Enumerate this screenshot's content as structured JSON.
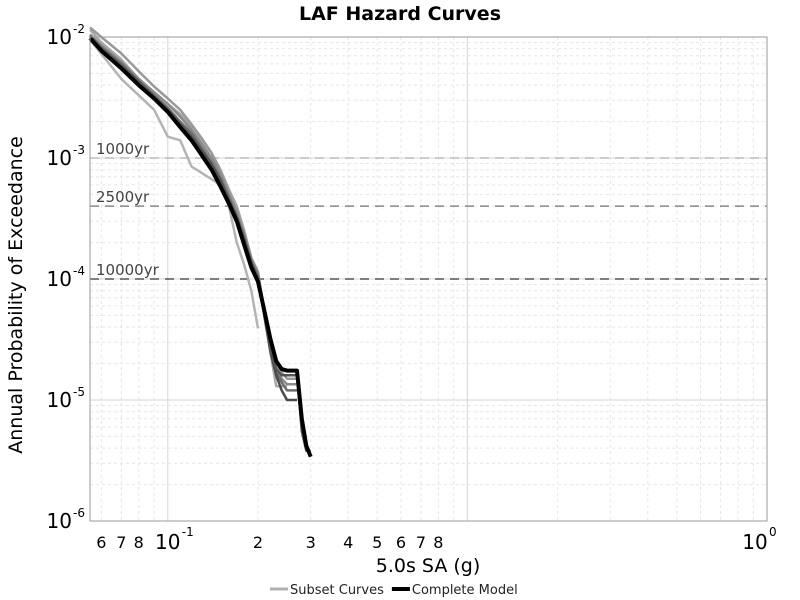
{
  "chart_data": {
    "type": "line",
    "title": "LAF Hazard Curves",
    "xlabel": "5.0s SA (g)",
    "ylabel": "Annual Probability of Exceedance",
    "x_scale": "log",
    "y_scale": "log",
    "xlim": [
      0.055,
      10
    ],
    "ylim": [
      1e-06,
      0.01
    ],
    "grid": true,
    "x_major_ticks": [
      {
        "value": 0.1,
        "base": "10",
        "exp": "-1"
      },
      {
        "value": 10,
        "base": "10",
        "exp": "0"
      }
    ],
    "x_minor_ticks": [
      {
        "value": 0.06,
        "label": "6"
      },
      {
        "value": 0.07,
        "label": "7"
      },
      {
        "value": 0.08,
        "label": "8"
      },
      {
        "value": 0.2,
        "label": "2"
      },
      {
        "value": 0.3,
        "label": "3"
      },
      {
        "value": 0.4,
        "label": "4"
      },
      {
        "value": 0.5,
        "label": "5"
      },
      {
        "value": 0.6,
        "label": "6"
      },
      {
        "value": 0.7,
        "label": "7"
      },
      {
        "value": 0.8,
        "label": "8"
      }
    ],
    "y_major_ticks": [
      {
        "value": 0.01,
        "base": "10",
        "exp": "-2"
      },
      {
        "value": 0.001,
        "base": "10",
        "exp": "-3"
      },
      {
        "value": 0.0001,
        "base": "10",
        "exp": "-4"
      },
      {
        "value": 1e-05,
        "base": "10",
        "exp": "-5"
      },
      {
        "value": 1e-06,
        "base": "10",
        "exp": "-6"
      }
    ],
    "reference_lines": [
      {
        "label": "1000yr",
        "y": 0.001,
        "color": "#bbbbbb"
      },
      {
        "label": "2500yr",
        "y": 0.0004,
        "color": "#888888"
      },
      {
        "label": "10000yr",
        "y": 0.0001,
        "color": "#555555"
      }
    ],
    "legend": {
      "placement": "bottom",
      "entries": [
        {
          "label": "Subset Curves",
          "color": "#b0b0b0"
        },
        {
          "label": "Complete Model",
          "color": "#000000"
        }
      ]
    },
    "series": [
      {
        "color": "#b4b4b4",
        "width": 2.5,
        "x": [
          0.055,
          0.07,
          0.09,
          0.1,
          0.11,
          0.12,
          0.13,
          0.15,
          0.16,
          0.17,
          0.18,
          0.19,
          0.2
        ],
        "y": [
          0.0095,
          0.0045,
          0.0025,
          0.0015,
          0.0014,
          0.00085,
          0.00075,
          0.0006,
          0.0004,
          0.0002,
          0.00013,
          8e-05,
          3.9e-05
        ]
      },
      {
        "color": "#a8a8a8",
        "width": 2.5,
        "x": [
          0.055,
          0.06,
          0.07,
          0.08,
          0.09,
          0.1,
          0.11,
          0.12,
          0.13,
          0.14,
          0.15,
          0.16,
          0.17,
          0.18,
          0.19,
          0.2,
          0.21,
          0.22,
          0.23,
          0.24,
          0.25
        ],
        "y": [
          0.0115,
          0.009,
          0.0065,
          0.0045,
          0.0035,
          0.0028,
          0.0023,
          0.0018,
          0.0014,
          0.0011,
          0.0008,
          0.00055,
          0.0004,
          0.00025,
          0.00015,
          0.0001,
          5e-05,
          2.5e-05,
          1.3e-05,
          1.3e-05,
          1.3e-05
        ]
      },
      {
        "color": "#9a9a9a",
        "width": 2.5,
        "x": [
          0.055,
          0.06,
          0.07,
          0.08,
          0.09,
          0.1,
          0.11,
          0.12,
          0.13,
          0.14,
          0.15,
          0.16,
          0.17,
          0.18,
          0.19,
          0.2,
          0.21,
          0.22,
          0.23,
          0.24,
          0.25,
          0.26,
          0.27
        ],
        "y": [
          0.012,
          0.01,
          0.0073,
          0.0052,
          0.0039,
          0.0031,
          0.0025,
          0.0019,
          0.00145,
          0.0011,
          0.00078,
          0.00052,
          0.00037,
          0.00024,
          0.00015,
          0.000115,
          5.5e-05,
          3e-05,
          1.9e-05,
          1.7e-05,
          1.5e-05,
          1.5e-05,
          1.5e-05
        ]
      },
      {
        "color": "#8a8a8a",
        "width": 2.5,
        "x": [
          0.055,
          0.06,
          0.07,
          0.08,
          0.09,
          0.1,
          0.11,
          0.12,
          0.13,
          0.14,
          0.15,
          0.16,
          0.17,
          0.18,
          0.19,
          0.2,
          0.21,
          0.22,
          0.23,
          0.24,
          0.25,
          0.26,
          0.27
        ],
        "y": [
          0.0105,
          0.0085,
          0.0062,
          0.0045,
          0.0035,
          0.0028,
          0.0022,
          0.0017,
          0.0013,
          0.001,
          0.00073,
          0.0005,
          0.00035,
          0.00023,
          0.000145,
          0.00011,
          5.5e-05,
          2.8e-05,
          1.8e-05,
          1.5e-05,
          1.35e-05,
          1.35e-05,
          1.35e-05
        ]
      },
      {
        "color": "#6e6e6e",
        "width": 2.5,
        "x": [
          0.055,
          0.06,
          0.07,
          0.08,
          0.09,
          0.1,
          0.11,
          0.12,
          0.13,
          0.14,
          0.15,
          0.16,
          0.17,
          0.18,
          0.19,
          0.2,
          0.21,
          0.22,
          0.23,
          0.24,
          0.25,
          0.26,
          0.27
        ],
        "y": [
          0.0102,
          0.0082,
          0.006,
          0.0043,
          0.0033,
          0.0026,
          0.002,
          0.0016,
          0.0012,
          0.00092,
          0.00068,
          0.00047,
          0.00033,
          0.00022,
          0.00014,
          0.000105,
          5.2e-05,
          2.6e-05,
          1.7e-05,
          1.4e-05,
          1.2e-05,
          1.2e-05,
          1.2e-05
        ]
      },
      {
        "color": "#4a4a4a",
        "width": 2.5,
        "x": [
          0.055,
          0.06,
          0.07,
          0.08,
          0.09,
          0.1,
          0.11,
          0.12,
          0.13,
          0.14,
          0.15,
          0.16,
          0.17,
          0.18,
          0.19,
          0.2,
          0.21,
          0.22,
          0.23,
          0.24,
          0.25,
          0.26,
          0.27
        ],
        "y": [
          0.01,
          0.008,
          0.0057,
          0.0042,
          0.0032,
          0.0025,
          0.0019,
          0.0015,
          0.00115,
          0.00088,
          0.00065,
          0.00045,
          0.00032,
          0.00021,
          0.000135,
          0.0001,
          5e-05,
          2.5e-05,
          1.6e-05,
          1.2e-05,
          1e-05,
          1e-05,
          1e-05
        ]
      },
      {
        "color": "#555555",
        "width": 2.5,
        "x": [
          0.055,
          0.06,
          0.07,
          0.08,
          0.09,
          0.1,
          0.11,
          0.12,
          0.13,
          0.14,
          0.15,
          0.16,
          0.17,
          0.18,
          0.19,
          0.2,
          0.21,
          0.22,
          0.23,
          0.24,
          0.25,
          0.26,
          0.27,
          0.28,
          0.29,
          0.3
        ],
        "y": [
          0.0102,
          0.0081,
          0.0058,
          0.0043,
          0.0032,
          0.0025,
          0.0019,
          0.0015,
          0.00112,
          0.00085,
          0.00064,
          0.00045,
          0.00031,
          0.0002,
          0.00013,
          0.0001,
          5e-05,
          2.6e-05,
          1.8e-05,
          1.6e-05,
          1.6e-05,
          1.6e-05,
          1.6e-05,
          5.5e-06,
          3.8e-06,
          3.8e-06
        ]
      },
      {
        "color": "#000000",
        "width": 4,
        "x": [
          0.055,
          0.06,
          0.07,
          0.08,
          0.09,
          0.1,
          0.11,
          0.12,
          0.13,
          0.14,
          0.15,
          0.16,
          0.17,
          0.18,
          0.19,
          0.2,
          0.21,
          0.22,
          0.23,
          0.24,
          0.25,
          0.26,
          0.27,
          0.28,
          0.29,
          0.3
        ],
        "y": [
          0.0098,
          0.0077,
          0.0055,
          0.004,
          0.0031,
          0.0024,
          0.0018,
          0.0014,
          0.00105,
          0.0008,
          0.00058,
          0.00042,
          0.0003,
          0.00019,
          0.000125,
          9.5e-05,
          5.5e-05,
          3.2e-05,
          2.1e-05,
          1.8e-05,
          1.75e-05,
          1.75e-05,
          1.75e-05,
          7e-06,
          4.2e-06,
          3.4e-06
        ]
      }
    ]
  }
}
